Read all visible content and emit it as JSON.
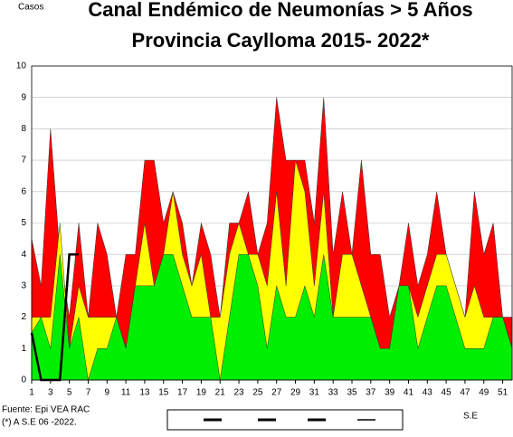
{
  "chart_data": {
    "type": "area",
    "title": "Canal Endémico de Neumonías > 5 Años",
    "subtitle": "Provincia Caylloma 2015- 2022*",
    "y_label": "Casos",
    "x_label": "S.E",
    "source": "Fuente: Epi VEA RAC",
    "footnote": "(*) A S.E 06 -2022.",
    "x": [
      1,
      2,
      3,
      4,
      5,
      6,
      7,
      8,
      9,
      10,
      11,
      12,
      13,
      14,
      15,
      16,
      17,
      18,
      19,
      20,
      21,
      22,
      23,
      24,
      25,
      26,
      27,
      28,
      29,
      30,
      31,
      32,
      33,
      34,
      35,
      36,
      37,
      38,
      39,
      40,
      41,
      42,
      43,
      44,
      45,
      46,
      47,
      48,
      49,
      50,
      51,
      52
    ],
    "xlim": [
      1,
      52
    ],
    "xticks": [
      1,
      3,
      5,
      7,
      9,
      11,
      13,
      15,
      17,
      19,
      21,
      23,
      25,
      27,
      29,
      31,
      33,
      35,
      37,
      39,
      41,
      43,
      45,
      47,
      49,
      51
    ],
    "ylim": [
      0,
      10
    ],
    "yticks": [
      0,
      1,
      2,
      3,
      4,
      5,
      6,
      7,
      8,
      9,
      10
    ],
    "grid": true,
    "series": [
      {
        "color": "#ff0000",
        "values": [
          4.5,
          3,
          8,
          4,
          2,
          5,
          2,
          5,
          4,
          2,
          4,
          4,
          7,
          7,
          5,
          6,
          5,
          3,
          5,
          4,
          2,
          5,
          5,
          6,
          4,
          5,
          9,
          7,
          7,
          7,
          5,
          9,
          4,
          6,
          4,
          7,
          4,
          4,
          2,
          3,
          5,
          3,
          4,
          6,
          4,
          3,
          2,
          6,
          4,
          5,
          2,
          2
        ]
      },
      {
        "color": "#ffff00",
        "values": [
          2,
          2,
          2,
          5,
          1,
          3,
          2,
          2,
          2,
          2,
          1,
          3,
          5,
          3,
          4,
          6,
          4,
          3,
          4,
          2,
          2,
          4,
          5,
          4,
          4,
          3,
          6,
          3,
          7,
          6,
          3,
          6,
          2,
          4,
          4,
          3,
          2,
          1,
          1,
          3,
          3,
          2,
          3,
          4,
          4,
          3,
          2,
          3,
          2,
          2,
          2,
          1
        ]
      },
      {
        "color": "#00ee00",
        "values": [
          1.5,
          2,
          1,
          4,
          1,
          2,
          0,
          1,
          1,
          2,
          1,
          3,
          3,
          3,
          4,
          4,
          3,
          2,
          2,
          2,
          0,
          2,
          4,
          4,
          3,
          1,
          3,
          2,
          2,
          3,
          2,
          4,
          2,
          2,
          2,
          2,
          2,
          1,
          1,
          3,
          3,
          1,
          2,
          3,
          3,
          2,
          1,
          1,
          1,
          2,
          2,
          1
        ]
      },
      {
        "color": "#000000",
        "line": true,
        "values": [
          1.5,
          0,
          0,
          0,
          4,
          4,
          null,
          null,
          null,
          null,
          null,
          null,
          null,
          null,
          null,
          null,
          null,
          null,
          null,
          null,
          null,
          null,
          null,
          null,
          null,
          null,
          null,
          null,
          null,
          null,
          null,
          null,
          null,
          null,
          null,
          null,
          null,
          null,
          null,
          null,
          null,
          null,
          null,
          null,
          null,
          null,
          null,
          null,
          null,
          null,
          null,
          null
        ]
      }
    ]
  }
}
